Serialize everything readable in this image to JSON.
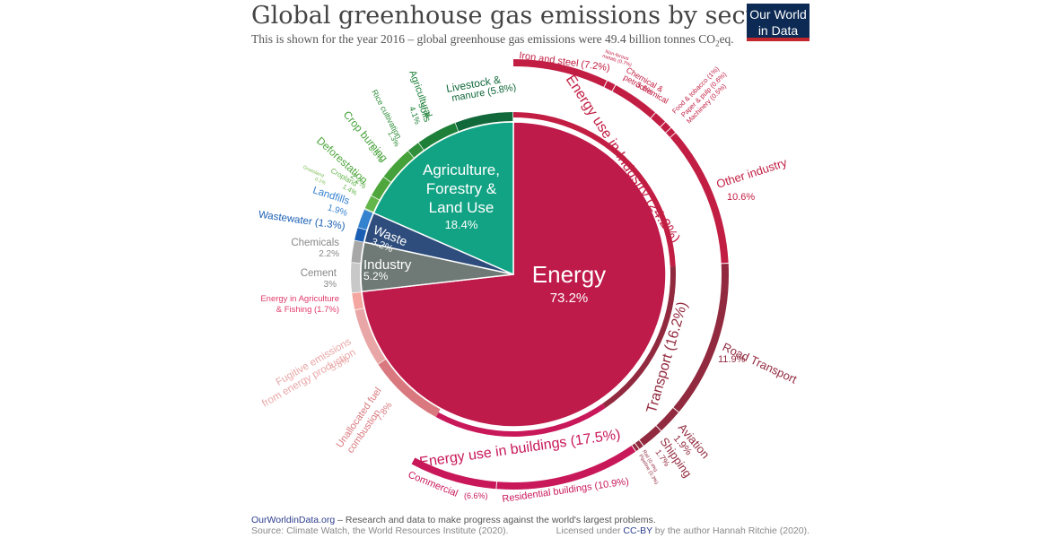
{
  "header": {
    "title": "Global greenhouse gas emissions by sector",
    "subtitle_pre": "This is shown for the year 2016 – global greenhouse gas emissions were 49.4 billion tonnes CO",
    "subtitle_sub": "2",
    "subtitle_post": "eq."
  },
  "logo": {
    "line1": "Our World",
    "line2": "in Data"
  },
  "footer": {
    "site": "OurWorldinData.org",
    "tagline": " – Research and data to make progress against the world's largest problems.",
    "source": "Source: Climate Watch, the World Resources Institute (2020).",
    "license_pre": "Licensed under ",
    "license_link": "CC-BY",
    "license_post": " by the author Hannah Ritchie  (2020)."
  },
  "chart_data": {
    "type": "pie",
    "unit": "%",
    "sectors": [
      {
        "label": "Energy",
        "value": 73.2,
        "value_label": "73.2%",
        "color": "#be1a4a"
      },
      {
        "label": "Industry",
        "value": 5.2,
        "value_label": "5.2%",
        "color": "#6f7a76"
      },
      {
        "label": "Waste",
        "value": 3.2,
        "value_label": "3.2%",
        "color": "#2e4d7c"
      },
      {
        "label": "Agriculture, Forestry & Land Use",
        "value": 18.4,
        "value_label": "18.4%",
        "color": "#12a384"
      }
    ],
    "middle_ring": [
      {
        "label": "Energy use in Industry (24.2%)",
        "value": 24.2,
        "color": "#c21e43"
      },
      {
        "label": "Transport (16.2%)",
        "value": 16.2,
        "color": "#922a3f"
      },
      {
        "label": "Energy use in buildings (17.5%)",
        "value": 17.5,
        "color": "#c8185a"
      }
    ],
    "subsectors": [
      {
        "group": "Energy use in Industry",
        "label": "Iron and steel (7.2%)",
        "value": 7.2,
        "color": "#c21e43"
      },
      {
        "group": "Energy use in Industry",
        "label": "Non-ferous metals (0.7%)",
        "value": 0.7,
        "color": "#c21e43"
      },
      {
        "group": "Energy use in Industry",
        "label": "Chemical & petrochemical",
        "value_label": "3.6%",
        "value": 3.6,
        "color": "#c21e43"
      },
      {
        "group": "Energy use in Industry",
        "label": "Food & tobacco (1%)",
        "value": 1.0,
        "color": "#c21e43"
      },
      {
        "group": "Energy use in Industry",
        "label": "Paper & pulp (0.6%)",
        "value": 0.6,
        "color": "#c21e43"
      },
      {
        "group": "Energy use in Industry",
        "label": "Machinery (0.5%)",
        "value": 0.5,
        "color": "#c21e43"
      },
      {
        "group": "Energy use in Industry",
        "label": "Other industry",
        "value_label": "10.6%",
        "value": 10.6,
        "color": "#c21e43"
      },
      {
        "group": "Transport",
        "label": "Road Transport",
        "value_label": "11.9%",
        "value": 11.9,
        "color": "#922a3f"
      },
      {
        "group": "Transport",
        "label": "Aviation",
        "value_label": "1.9%",
        "value": 1.9,
        "color": "#922a3f"
      },
      {
        "group": "Transport",
        "label": "Shipping",
        "value_label": "1.7%",
        "value": 1.7,
        "color": "#922a3f"
      },
      {
        "group": "Transport",
        "label": "Rail (0.4%)",
        "value": 0.4,
        "color": "#922a3f"
      },
      {
        "group": "Transport",
        "label": "Pipeline (0.3%)",
        "value": 0.3,
        "color": "#922a3f"
      },
      {
        "group": "Energy use in buildings",
        "label": "Residential buildings (10.9%)",
        "value": 10.9,
        "color": "#c8185a"
      },
      {
        "group": "Energy use in buildings",
        "label": "Commercial",
        "value_label": "(6.6%)",
        "value": 6.6,
        "color": "#c8185a"
      },
      {
        "group": "Energy",
        "label": "Unallocated fuel combustion",
        "value_label": "7.8%",
        "value": 7.8,
        "color": "#d9797f"
      },
      {
        "group": "Energy",
        "label": "Fugitive emissions from energy production",
        "value_label": "5.8%",
        "value": 5.8,
        "color": "#e9a6a6"
      },
      {
        "group": "Energy",
        "label": "Energy in Agriculture & Fishing (1.7%)",
        "value": 1.7,
        "color": "#f4a6a0"
      },
      {
        "group": "Industry",
        "label": "Cement",
        "value_label": "3%",
        "value": 3.0,
        "color": "#c8c8c8"
      },
      {
        "group": "Industry",
        "label": "Chemicals",
        "value_label": "2.2%",
        "value": 2.2,
        "color": "#a7a7a7"
      },
      {
        "group": "Waste",
        "label": "Wastewater (1.3%)",
        "value": 1.3,
        "color": "#1a5fb4"
      },
      {
        "group": "Waste",
        "label": "Landfills",
        "value_label": "1.9%",
        "value": 1.9,
        "color": "#3582cf"
      },
      {
        "group": "Agriculture, Forestry & Land Use",
        "label": "Grassland",
        "value_label": "0.1%",
        "value": 0.1,
        "color": "#7cbf5a"
      },
      {
        "group": "Agriculture, Forestry & Land Use",
        "label": "Cropland",
        "value_label": "1.4%",
        "value": 1.4,
        "color": "#63b649"
      },
      {
        "group": "Agriculture, Forestry & Land Use",
        "label": "Deforestation",
        "value_label": "2.2%",
        "value": 2.2,
        "color": "#4ea63c"
      },
      {
        "group": "Agriculture, Forestry & Land Use",
        "label": "Crop burning",
        "value_label": "3.5%",
        "value": 3.5,
        "color": "#45a139"
      },
      {
        "group": "Agriculture, Forestry & Land Use",
        "label": "Rice cultivation",
        "value_label": "1.3%",
        "value": 1.3,
        "color": "#2f8f3a"
      },
      {
        "group": "Agriculture, Forestry & Land Use",
        "label": "Agricultural soils",
        "value_label": "4.1%",
        "value": 4.1,
        "color": "#1d7f38"
      },
      {
        "group": "Agriculture, Forestry & Land Use",
        "label": "Livestock & manure (5.8%)",
        "value": 5.8,
        "color": "#11683a"
      }
    ]
  }
}
